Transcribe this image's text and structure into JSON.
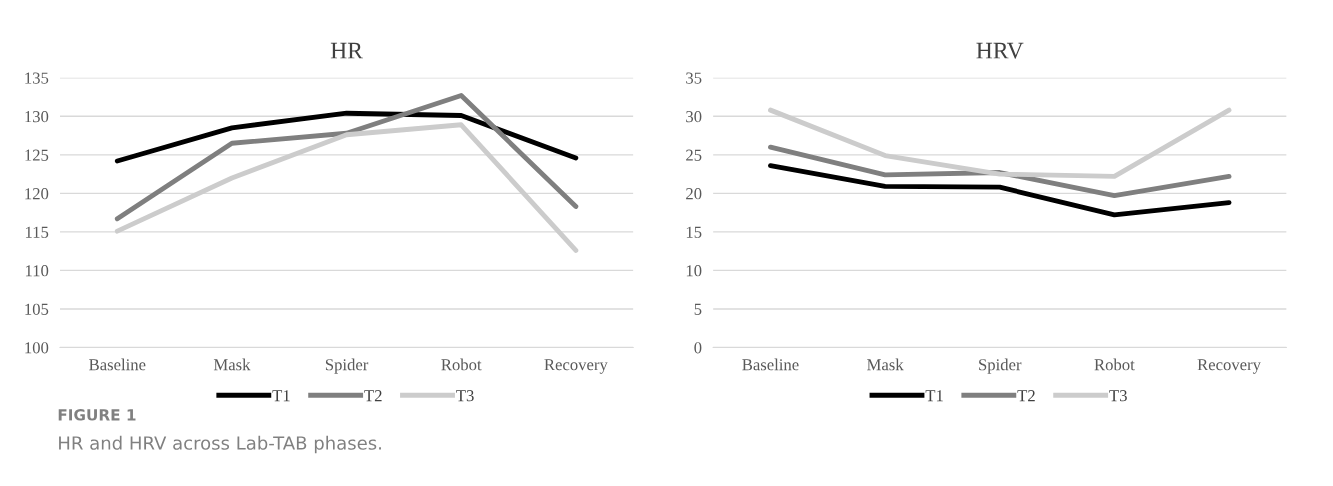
{
  "chart_data": [
    {
      "type": "line",
      "title": "HR",
      "categories": [
        "Baseline",
        "Mask",
        "Spider",
        "Robot",
        "Recovery"
      ],
      "series": [
        {
          "name": "T1",
          "color": "#000000",
          "values": [
            124.2,
            128.5,
            130.4,
            130.1,
            124.6
          ]
        },
        {
          "name": "T2",
          "color": "#7f7f7f",
          "values": [
            116.7,
            126.5,
            127.8,
            132.7,
            118.3
          ]
        },
        {
          "name": "T3",
          "color": "#cccccc",
          "values": [
            115.1,
            122.0,
            127.6,
            128.9,
            112.6
          ]
        }
      ],
      "ylim": [
        100,
        135
      ],
      "yticks": [
        100,
        105,
        110,
        115,
        120,
        125,
        130,
        135
      ],
      "grid": "y",
      "legend": "bottom",
      "marker": "none",
      "line_style": "solid",
      "annotations": [
        "FIGURE 1",
        "HR and HRV across Lab-TAB phases."
      ]
    },
    {
      "type": "line",
      "title": "HRV",
      "categories": [
        "Baseline",
        "Mask",
        "Spider",
        "Robot",
        "Recovery"
      ],
      "series": [
        {
          "name": "T1",
          "color": "#000000",
          "values": [
            23.6,
            20.9,
            20.8,
            17.2,
            18.8
          ]
        },
        {
          "name": "T2",
          "color": "#7f7f7f",
          "values": [
            26.0,
            22.4,
            22.7,
            19.7,
            22.2
          ]
        },
        {
          "name": "T3",
          "color": "#cccccc",
          "values": [
            30.8,
            24.9,
            22.5,
            22.2,
            30.8
          ]
        }
      ],
      "ylim": [
        0,
        35
      ],
      "yticks": [
        0,
        5,
        10,
        15,
        20,
        25,
        30,
        35
      ],
      "grid": "y",
      "legend": "bottom",
      "marker": "none",
      "line_style": "solid"
    }
  ]
}
